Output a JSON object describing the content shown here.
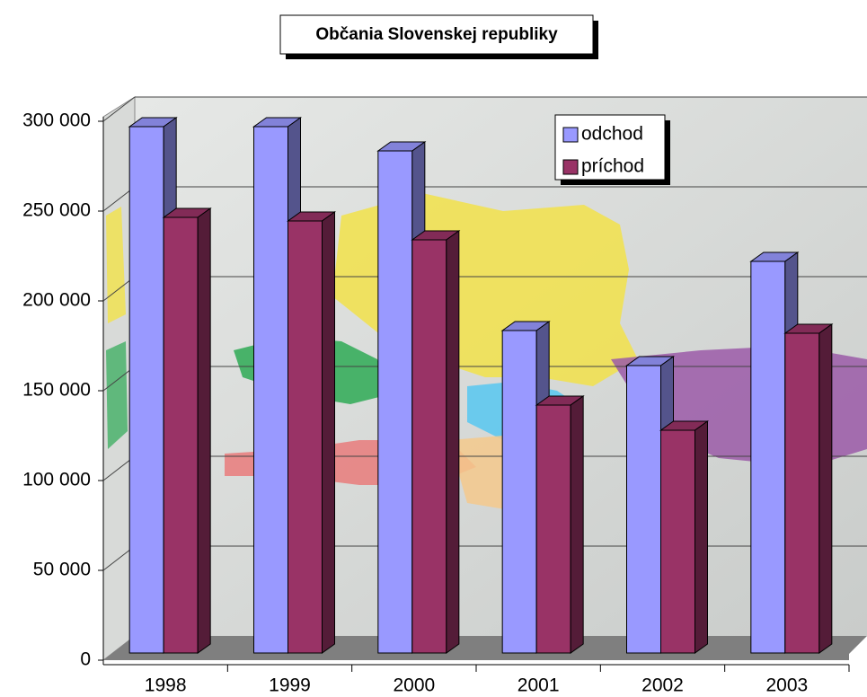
{
  "chart_data": {
    "type": "bar3d",
    "title": "Občania Slovenskej republiky",
    "categories": [
      "1998",
      "1999",
      "2000",
      "2001",
      "2002",
      "2003"
    ],
    "series": [
      {
        "name": "odchod",
        "color": "#9999ff",
        "values": [
          293000,
          293000,
          279500,
          179500,
          160000,
          218000
        ]
      },
      {
        "name": "príchod",
        "color": "#993366",
        "values": [
          242500,
          240500,
          230000,
          138000,
          124000,
          178000
        ]
      }
    ],
    "ylim": [
      0,
      300000
    ],
    "yticks": [
      {
        "value": 0,
        "label": "0"
      },
      {
        "value": 50000,
        "label": "50 000"
      },
      {
        "value": 100000,
        "label": "100 000"
      },
      {
        "value": 150000,
        "label": "150 000"
      },
      {
        "value": 200000,
        "label": "200 000"
      },
      {
        "value": 250000,
        "label": "250 000"
      },
      {
        "value": 300000,
        "label": "300 000"
      }
    ],
    "grid": true,
    "legend": "top-right"
  }
}
